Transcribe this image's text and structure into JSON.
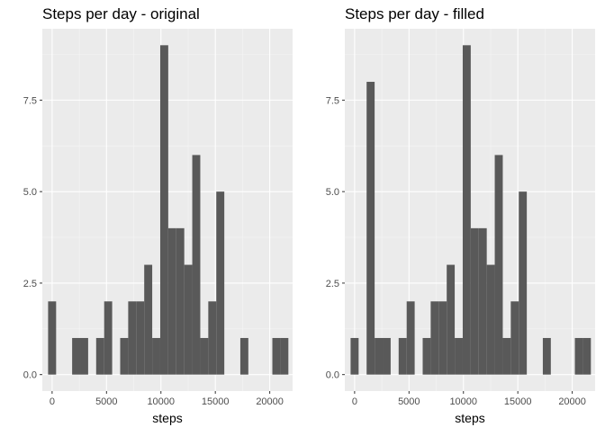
{
  "colors": {
    "panel_background": "#ebebeb",
    "grid_major": "#ffffff",
    "grid_minor": "#f5f5f5",
    "bar_fill": "#595959",
    "tick_text": "#4d4d4d",
    "tick_mark": "#333333"
  },
  "chart_data": [
    {
      "type": "bar",
      "title": "Steps per day - original",
      "xlabel": "steps",
      "ylabel": "",
      "xlim": [
        -900,
        22100
      ],
      "ylim": [
        -0.45,
        9.45
      ],
      "x_ticks": [
        0,
        5000,
        10000,
        15000,
        20000
      ],
      "x_tick_labels": [
        "0",
        "5000",
        "10000",
        "15000",
        "20000"
      ],
      "y_ticks": [
        0,
        2.5,
        5,
        7.5
      ],
      "y_tick_labels": [
        "0.0",
        "2.5",
        "5.0",
        "7.5"
      ],
      "grid": true,
      "bin_width": 736,
      "bin_centers": [
        0,
        736,
        1472,
        2208,
        2944,
        3680,
        4416,
        5152,
        5888,
        6624,
        7360,
        8096,
        8832,
        9568,
        10304,
        11040,
        11776,
        12512,
        13248,
        13984,
        14720,
        15456,
        16192,
        16928,
        17664,
        18400,
        19136,
        19872,
        20608,
        21344
      ],
      "values": [
        2,
        0,
        0,
        1,
        1,
        0,
        1,
        2,
        0,
        1,
        2,
        2,
        3,
        1,
        9,
        4,
        4,
        3,
        6,
        1,
        2,
        5,
        0,
        0,
        1,
        0,
        0,
        0,
        1,
        1
      ]
    },
    {
      "type": "bar",
      "title": "Steps per day - filled",
      "xlabel": "steps",
      "ylabel": "",
      "xlim": [
        -900,
        22100
      ],
      "ylim": [
        -0.45,
        9.45
      ],
      "x_ticks": [
        0,
        5000,
        10000,
        15000,
        20000
      ],
      "x_tick_labels": [
        "0",
        "5000",
        "10000",
        "15000",
        "20000"
      ],
      "y_ticks": [
        0,
        2.5,
        5,
        7.5
      ],
      "y_tick_labels": [
        "0.0",
        "2.5",
        "5.0",
        "7.5"
      ],
      "grid": true,
      "bin_width": 736,
      "bin_centers": [
        0,
        736,
        1472,
        2208,
        2944,
        3680,
        4416,
        5152,
        5888,
        6624,
        7360,
        8096,
        8832,
        9568,
        10304,
        11040,
        11776,
        12512,
        13248,
        13984,
        14720,
        15456,
        16192,
        16928,
        17664,
        18400,
        19136,
        19872,
        20608,
        21344
      ],
      "values": [
        1,
        0,
        8,
        1,
        1,
        0,
        1,
        2,
        0,
        1,
        2,
        2,
        3,
        1,
        9,
        4,
        4,
        3,
        6,
        1,
        2,
        5,
        0,
        0,
        1,
        0,
        0,
        0,
        1,
        1
      ]
    }
  ]
}
